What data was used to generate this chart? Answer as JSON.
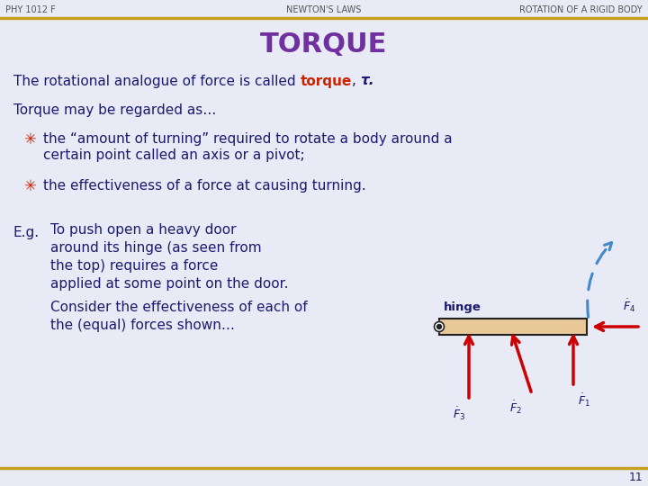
{
  "bg_color": "#e8ebf5",
  "header_line_color": "#c8a020",
  "header_text_color": "#555555",
  "title_color": "#7030a0",
  "body_text_color": "#1a1a6e",
  "highlight_color": "#cc2200",
  "bullet_color": "#cc2200",
  "arrow_color": "#cc0000",
  "dashed_arrow_color": "#4488cc",
  "door_fill": "#e8c898",
  "door_edge": "#222222",
  "header_left": "PHY 1012 F",
  "header_center": "NEWTON'S LAWS",
  "header_right": "ROTATION OF A RIGID BODY",
  "slide_title": "TORQUE",
  "line1_normal": "The rotational analogue of force is called ",
  "line1_highlight": "torque",
  "line1_comma": ", ",
  "line1_tau": "τ.",
  "line2": "Torque may be regarded as…",
  "bullet1_line1": "the “amount of turning” required to rotate a body around a",
  "bullet1_line2": "certain point called an axis or a pivot;",
  "bullet2": "the effectiveness of a force at causing turning.",
  "eg_label": "E.g.",
  "eg_text1": "To push open a heavy door",
  "eg_text2": "around its hinge (as seen from",
  "eg_text3": "the top) requires a force",
  "eg_text4": "applied at some point on the door.",
  "eg_text5": "Consider the effectiveness of each of",
  "eg_text6": "the (equal) forces shown…",
  "hinge_label": "hinge",
  "page_number": "11",
  "footer_line_color": "#c8a020",
  "title_fontsize": 22,
  "header_fontsize": 7,
  "body_fontsize": 11,
  "bullet_fontsize": 11
}
